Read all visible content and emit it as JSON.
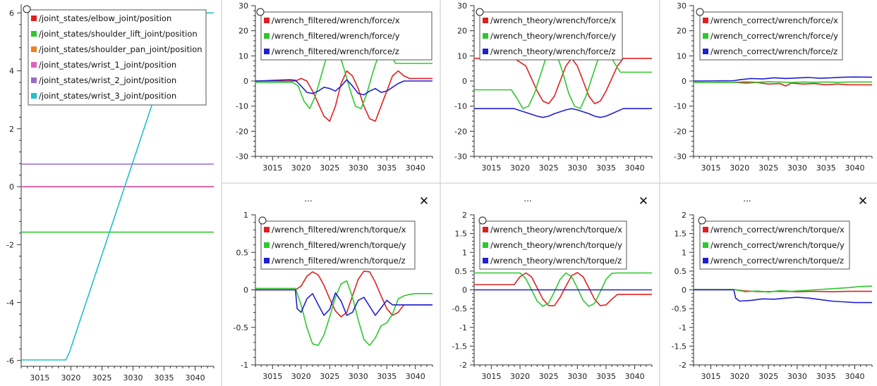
{
  "window": {
    "panel_title": "...",
    "close_glyph": "✕"
  },
  "chart_data": [
    {
      "type": "line",
      "id": "joints",
      "xlim": [
        3012,
        3043
      ],
      "ylim": [
        -6.2,
        6.3
      ],
      "xticks": [
        3015,
        3020,
        3025,
        3030,
        3035,
        3040
      ],
      "yticks": [
        -6,
        -4,
        -2,
        0,
        2,
        4,
        6
      ],
      "series": [
        {
          "name": "/joint_states/elbow_joint/position",
          "color": "#e02020",
          "x": [
            3012,
            3043
          ],
          "y": [
            0,
            0
          ]
        },
        {
          "name": "/joint_states/shoulder_lift_joint/position",
          "color": "#2ec82e",
          "x": [
            3012,
            3043
          ],
          "y": [
            -1.57,
            -1.57
          ]
        },
        {
          "name": "/joint_states/shoulder_pan_joint/position",
          "color": "#f08020",
          "x": [
            3012,
            3043
          ],
          "y": [
            0,
            0
          ]
        },
        {
          "name": "/joint_states/wrist_1_joint/position",
          "color": "#e060c0",
          "x": [
            3012,
            3043
          ],
          "y": [
            0,
            0
          ]
        },
        {
          "name": "/joint_states/wrist_2_joint/position",
          "color": "#9a6cc8",
          "x": [
            3012,
            3043
          ],
          "y": [
            0.78,
            0.78
          ]
        },
        {
          "name": "/joint_states/wrist_3_joint/position",
          "color": "#20c0c8",
          "x": [
            3012,
            3019.2,
            3019.8,
            3037.6,
            3038.2,
            3043
          ],
          "y": [
            -5.98,
            -5.98,
            -5.7,
            5.75,
            6.0,
            6.0
          ]
        }
      ]
    },
    {
      "type": "line",
      "id": "filtered-force",
      "xlim": [
        3012,
        3043
      ],
      "ylim": [
        -30,
        30
      ],
      "xticks": [
        3015,
        3020,
        3025,
        3030,
        3035,
        3040
      ],
      "yticks": [
        -30,
        -20,
        -10,
        0,
        10,
        20,
        30
      ],
      "series": [
        {
          "name": "/wrench_filtered/wrench/force/x",
          "color": "#e02020",
          "x": [
            3012,
            3019,
            3020,
            3021,
            3022,
            3023,
            3024,
            3025,
            3026,
            3027,
            3028,
            3029,
            3030,
            3031,
            3032,
            3033,
            3034,
            3035,
            3036,
            3037,
            3038,
            3039,
            3040,
            3043
          ],
          "y": [
            0,
            0,
            1,
            0,
            -4,
            -9,
            -14,
            -16,
            -10,
            -1,
            4,
            2,
            -3,
            -10,
            -15,
            -16,
            -10,
            -4,
            2,
            4,
            2,
            1,
            1,
            1
          ]
        },
        {
          "name": "/wrench_filtered/wrench/force/y",
          "color": "#2ec82e",
          "x": [
            3012,
            3018.5,
            3019.5,
            3020.5,
            3021.5,
            3022.5,
            3023.5,
            3024.5,
            3025.5,
            3026.5,
            3027.5,
            3028.5,
            3029.5,
            3030.5,
            3031.5,
            3032.5,
            3033.5,
            3034.5,
            3035.5,
            3036.5,
            3037.5,
            3038.5,
            3039.5,
            3043
          ],
          "y": [
            -0.5,
            -0.5,
            -2,
            -8,
            -11,
            -6,
            2,
            10,
            13,
            12,
            5,
            -3,
            -10,
            -11,
            -5,
            3,
            10,
            13,
            12,
            7,
            7,
            7,
            7,
            7
          ]
        },
        {
          "name": "/wrench_filtered/wrench/force/z",
          "color": "#2020d0",
          "x": [
            3012,
            3018,
            3019,
            3020,
            3021,
            3022,
            3023,
            3024,
            3025,
            3026,
            3027,
            3028,
            3029,
            3030,
            3031,
            3032,
            3033,
            3034,
            3035,
            3036,
            3037,
            3038,
            3043
          ],
          "y": [
            0,
            0.5,
            0.3,
            -2,
            -4.5,
            -5,
            -4,
            -2.5,
            -3,
            -4,
            -2,
            0.5,
            -2,
            -5,
            -5.5,
            -4,
            -3,
            -4.5,
            -4,
            -2.5,
            -1,
            0,
            0
          ]
        }
      ]
    },
    {
      "type": "line",
      "id": "theory-force",
      "xlim": [
        3012,
        3043
      ],
      "ylim": [
        -30,
        30
      ],
      "xticks": [
        3015,
        3020,
        3025,
        3030,
        3035,
        3040
      ],
      "yticks": [
        -30,
        -20,
        -10,
        0,
        10,
        20,
        30
      ],
      "series": [
        {
          "name": "/wrench_theory/wrench/force/x",
          "color": "#e02020",
          "x": [
            3012,
            3019,
            3021,
            3022,
            3023,
            3024,
            3025,
            3026,
            3027,
            3028,
            3029,
            3030,
            3031,
            3032,
            3033,
            3034,
            3035,
            3036,
            3037,
            3038,
            3043
          ],
          "y": [
            9,
            9,
            6,
            1,
            -4,
            -8,
            -9,
            -6,
            0,
            6,
            9,
            6,
            0,
            -6,
            -9,
            -8,
            -4,
            1,
            6,
            9,
            9
          ]
        },
        {
          "name": "/wrench_theory/wrench/force/y",
          "color": "#2ec82e",
          "x": [
            3012,
            3018.5,
            3019.5,
            3020.5,
            3021.5,
            3022.5,
            3023.5,
            3024.5,
            3025.5,
            3026.5,
            3027.5,
            3028.5,
            3029.5,
            3030.5,
            3031.5,
            3032.5,
            3033.5,
            3034.5,
            3035.5,
            3036.5,
            3037.5,
            3038.5,
            3043
          ],
          "y": [
            -3.5,
            -3.5,
            -7,
            -11,
            -10,
            -5,
            2,
            9,
            12,
            10,
            3,
            -5,
            -10,
            -11,
            -6,
            1,
            8,
            12,
            11,
            7,
            3.5,
            3.5,
            3.5
          ]
        },
        {
          "name": "/wrench_theory/wrench/force/z",
          "color": "#2020d0",
          "x": [
            3012,
            3019,
            3021,
            3023,
            3024,
            3025,
            3026,
            3028,
            3029,
            3030,
            3032,
            3033,
            3034,
            3035,
            3036,
            3038,
            3043
          ],
          "y": [
            -11,
            -11,
            -12.5,
            -14,
            -14.5,
            -14,
            -13,
            -11.5,
            -11,
            -11.5,
            -13,
            -14,
            -14.5,
            -14,
            -13,
            -11,
            -11
          ]
        }
      ]
    },
    {
      "type": "line",
      "id": "correct-force",
      "xlim": [
        3012,
        3043
      ],
      "ylim": [
        -30,
        30
      ],
      "xticks": [
        3015,
        3020,
        3025,
        3030,
        3035,
        3040
      ],
      "yticks": [
        -30,
        -20,
        -10,
        0,
        10,
        20,
        30
      ],
      "series": [
        {
          "name": "/wrench_correct/wrench/force/x",
          "color": "#e02020",
          "x": [
            3012,
            3019,
            3021,
            3023,
            3025,
            3027,
            3028,
            3029,
            3031,
            3033,
            3035,
            3037,
            3039,
            3041,
            3043
          ],
          "y": [
            -0.5,
            -0.5,
            -0.8,
            -0.6,
            -1.2,
            -1,
            -2,
            -0.8,
            -1.2,
            -1,
            -1.5,
            -1.2,
            -1.5,
            -1.5,
            -1.5
          ]
        },
        {
          "name": "/wrench_correct/wrench/force/y",
          "color": "#2ec82e",
          "x": [
            3012,
            3019,
            3021,
            3023,
            3025,
            3027,
            3029,
            3031,
            3033,
            3035,
            3037,
            3039,
            3041,
            3043
          ],
          "y": [
            -0.5,
            -0.5,
            -0.3,
            -0.5,
            -0.3,
            -0.4,
            -0.6,
            -0.4,
            -0.5,
            -0.4,
            -0.5,
            -0.4,
            -0.4,
            -0.4
          ]
        },
        {
          "name": "/wrench_correct/wrench/force/z",
          "color": "#2020d0",
          "x": [
            3012,
            3019,
            3020,
            3022,
            3024,
            3026,
            3028,
            3030,
            3032,
            3034,
            3036,
            3038,
            3040,
            3043
          ],
          "y": [
            0,
            0.1,
            0.5,
            1,
            0.8,
            1.3,
            1,
            1.2,
            1.4,
            1.1,
            1.3,
            1.5,
            1.6,
            1.5
          ]
        }
      ]
    },
    {
      "type": "line",
      "id": "filtered-torque",
      "xlim": [
        3012,
        3043
      ],
      "ylim": [
        -1,
        1
      ],
      "xticks": [
        3015,
        3020,
        3025,
        3030,
        3035,
        3040
      ],
      "yticks": [
        -1,
        -0.5,
        0,
        0.5,
        1
      ],
      "series": [
        {
          "name": "/wrench_filtered/wrench/torque/x",
          "color": "#e02020",
          "x": [
            3012,
            3019,
            3020,
            3021,
            3022,
            3023,
            3024,
            3025,
            3026,
            3027,
            3028,
            3029,
            3030,
            3031,
            3032,
            3033,
            3034,
            3035,
            3036,
            3037,
            3038,
            3043
          ],
          "y": [
            0,
            0,
            0.05,
            0.18,
            0.24,
            0.2,
            0.06,
            -0.12,
            -0.28,
            -0.36,
            -0.3,
            -0.08,
            0.14,
            0.25,
            0.24,
            0.1,
            -0.08,
            -0.25,
            -0.34,
            -0.3,
            -0.2,
            -0.2
          ]
        },
        {
          "name": "/wrench_filtered/wrench/torque/y",
          "color": "#2ec82e",
          "x": [
            3012,
            3019,
            3020,
            3021,
            3022,
            3023,
            3024,
            3025,
            3026,
            3027,
            3028,
            3029,
            3030,
            3031,
            3032,
            3033,
            3034,
            3035,
            3036,
            3037,
            3038,
            3039,
            3040,
            3043
          ],
          "y": [
            0.02,
            0.02,
            -0.2,
            -0.5,
            -0.72,
            -0.74,
            -0.6,
            -0.36,
            -0.1,
            0.08,
            0.12,
            -0.1,
            -0.4,
            -0.66,
            -0.74,
            -0.64,
            -0.48,
            -0.44,
            -0.32,
            -0.12,
            -0.08,
            -0.06,
            -0.05,
            -0.05
          ]
        },
        {
          "name": "/wrench_filtered/wrench/torque/z",
          "color": "#2020d0",
          "x": [
            3012,
            3019,
            3019.3,
            3020,
            3021,
            3022,
            3023,
            3024,
            3025,
            3026,
            3027,
            3028,
            3029,
            3030,
            3031,
            3032,
            3033,
            3034,
            3035,
            3036,
            3037,
            3038,
            3043
          ],
          "y": [
            0,
            0,
            -0.25,
            -0.3,
            -0.12,
            -0.05,
            -0.2,
            -0.34,
            -0.26,
            -0.04,
            -0.15,
            -0.34,
            -0.3,
            -0.14,
            -0.1,
            -0.22,
            -0.34,
            -0.24,
            -0.14,
            -0.2,
            -0.2,
            -0.2,
            -0.2
          ]
        }
      ]
    },
    {
      "type": "line",
      "id": "theory-torque",
      "xlim": [
        3012,
        3043
      ],
      "ylim": [
        -2,
        2
      ],
      "xticks": [
        3015,
        3020,
        3025,
        3030,
        3035,
        3040
      ],
      "yticks": [
        -2,
        -1.5,
        -1,
        -0.5,
        0,
        0.5,
        1,
        1.5,
        2
      ],
      "series": [
        {
          "name": "/wrench_theory/wrench/torque/x",
          "color": "#e02020",
          "x": [
            3012,
            3019,
            3020,
            3021,
            3022,
            3023,
            3024,
            3025,
            3026,
            3027,
            3028,
            3029,
            3030,
            3031,
            3032,
            3033,
            3034,
            3035,
            3036,
            3037,
            3038,
            3043
          ],
          "y": [
            0.14,
            0.14,
            0.35,
            0.45,
            0.35,
            0.05,
            -0.25,
            -0.42,
            -0.42,
            -0.2,
            0.1,
            0.38,
            0.46,
            0.35,
            0.05,
            -0.25,
            -0.42,
            -0.4,
            -0.25,
            -0.12,
            -0.12,
            -0.12
          ]
        },
        {
          "name": "/wrench_theory/wrench/torque/y",
          "color": "#2ec82e",
          "x": [
            3012,
            3019,
            3020,
            3021,
            3022,
            3023,
            3024,
            3025,
            3026,
            3027,
            3028,
            3029,
            3030,
            3031,
            3032,
            3033,
            3034,
            3035,
            3036,
            3037,
            3038,
            3043
          ],
          "y": [
            0.45,
            0.45,
            0.45,
            0.3,
            0.0,
            -0.3,
            -0.44,
            -0.35,
            -0.05,
            0.28,
            0.45,
            0.35,
            0.05,
            -0.28,
            -0.44,
            -0.36,
            -0.05,
            0.28,
            0.44,
            0.45,
            0.45,
            0.45
          ]
        },
        {
          "name": "/wrench_theory/wrench/torque/z",
          "color": "#2020d0",
          "x": [
            3012,
            3043
          ],
          "y": [
            0,
            0
          ]
        }
      ]
    },
    {
      "type": "line",
      "id": "correct-torque",
      "xlim": [
        3012,
        3043
      ],
      "ylim": [
        -2,
        2
      ],
      "xticks": [
        3015,
        3020,
        3025,
        3030,
        3035,
        3040
      ],
      "yticks": [
        -2,
        -1.5,
        -1,
        -0.5,
        0,
        0.5,
        1,
        1.5,
        2
      ],
      "series": [
        {
          "name": "/wrench_correct/wrench/torque/x",
          "color": "#e02020",
          "x": [
            3012,
            3019,
            3021,
            3024,
            3027,
            3030,
            3033,
            3036,
            3039,
            3043
          ],
          "y": [
            0.01,
            0.01,
            -0.03,
            -0.05,
            -0.04,
            -0.05,
            -0.04,
            -0.05,
            -0.04,
            -0.04
          ]
        },
        {
          "name": "/wrench_correct/wrench/torque/y",
          "color": "#2ec82e",
          "x": [
            3012,
            3019,
            3021,
            3023,
            3025,
            3027,
            3029,
            3031,
            3033,
            3035,
            3037,
            3039,
            3041,
            3043
          ],
          "y": [
            0.01,
            0.01,
            -0.05,
            -0.03,
            -0.06,
            -0.02,
            -0.04,
            -0.02,
            0.0,
            0.02,
            0.04,
            0.06,
            0.09,
            0.1
          ]
        },
        {
          "name": "/wrench_correct/wrench/torque/z",
          "color": "#2020d0",
          "x": [
            3012,
            3019,
            3019.3,
            3020,
            3022,
            3024,
            3026,
            3028,
            3030,
            3032,
            3034,
            3036,
            3038,
            3040,
            3043
          ],
          "y": [
            0,
            0,
            -0.22,
            -0.3,
            -0.28,
            -0.24,
            -0.25,
            -0.22,
            -0.2,
            -0.22,
            -0.26,
            -0.3,
            -0.32,
            -0.34,
            -0.34
          ]
        }
      ]
    }
  ]
}
